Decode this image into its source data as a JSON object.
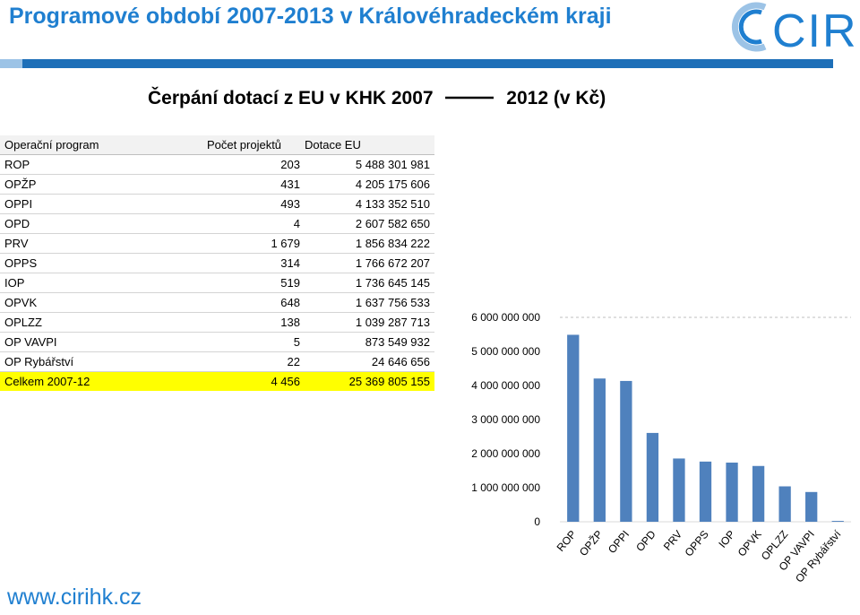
{
  "header": {
    "title": "Programové období 2007-2013 v Královéhradeckém kraji",
    "logo_text": "CIRI",
    "accent_color": "#1f7fd0",
    "bar_color": "#1d6fb8"
  },
  "table": {
    "title_left": "Čerpání dotací z EU v KHK 2007",
    "title_right": "2012 (v Kč)",
    "headers": [
      "Operační program",
      "Počet projektů",
      "Dotace EU"
    ],
    "rows": [
      [
        "ROP",
        "203",
        "5 488 301 981"
      ],
      [
        "OPŽP",
        "431",
        "4 205 175 606"
      ],
      [
        "OPPI",
        "493",
        "4 133 352 510"
      ],
      [
        "OPD",
        "4",
        "2 607 582 650"
      ],
      [
        "PRV",
        "1 679",
        "1 856 834 222"
      ],
      [
        "OPPS",
        "314",
        "1 766 672 207"
      ],
      [
        "IOP",
        "519",
        "1 736 645 145"
      ],
      [
        "OPVK",
        "648",
        "1 637 756 533"
      ],
      [
        "OPLZZ",
        "138",
        "1 039 287 713"
      ],
      [
        "OP VAVPI",
        "5",
        "873 549 932"
      ],
      [
        "OP Rybářství",
        "22",
        "24 646 656"
      ]
    ],
    "total": [
      "Celkem 2007-12",
      "4 456",
      "25 369 805 155"
    ],
    "highlight_color": "#ffff00"
  },
  "chart_data": {
    "type": "bar",
    "categories": [
      "ROP",
      "OPŽP",
      "OPPI",
      "OPD",
      "PRV",
      "OPPS",
      "IOP",
      "OPVK",
      "OPLZZ",
      "OP VAVPI",
      "OP Rybářství"
    ],
    "values": [
      5488301981,
      4205175606,
      4133352510,
      2607582650,
      1856834222,
      1766672207,
      1736645145,
      1637756533,
      1039287713,
      873549932,
      24646656
    ],
    "ylim": [
      0,
      6000000000
    ],
    "yticks": [
      "0",
      "1 000 000 000",
      "2 000 000 000",
      "3 000 000 000",
      "4 000 000 000",
      "5 000 000 000",
      "6 000 000 000"
    ],
    "grid": "top-only",
    "bar_color": "#4f81bd"
  },
  "footer": {
    "url": "www.cirihk.cz"
  }
}
